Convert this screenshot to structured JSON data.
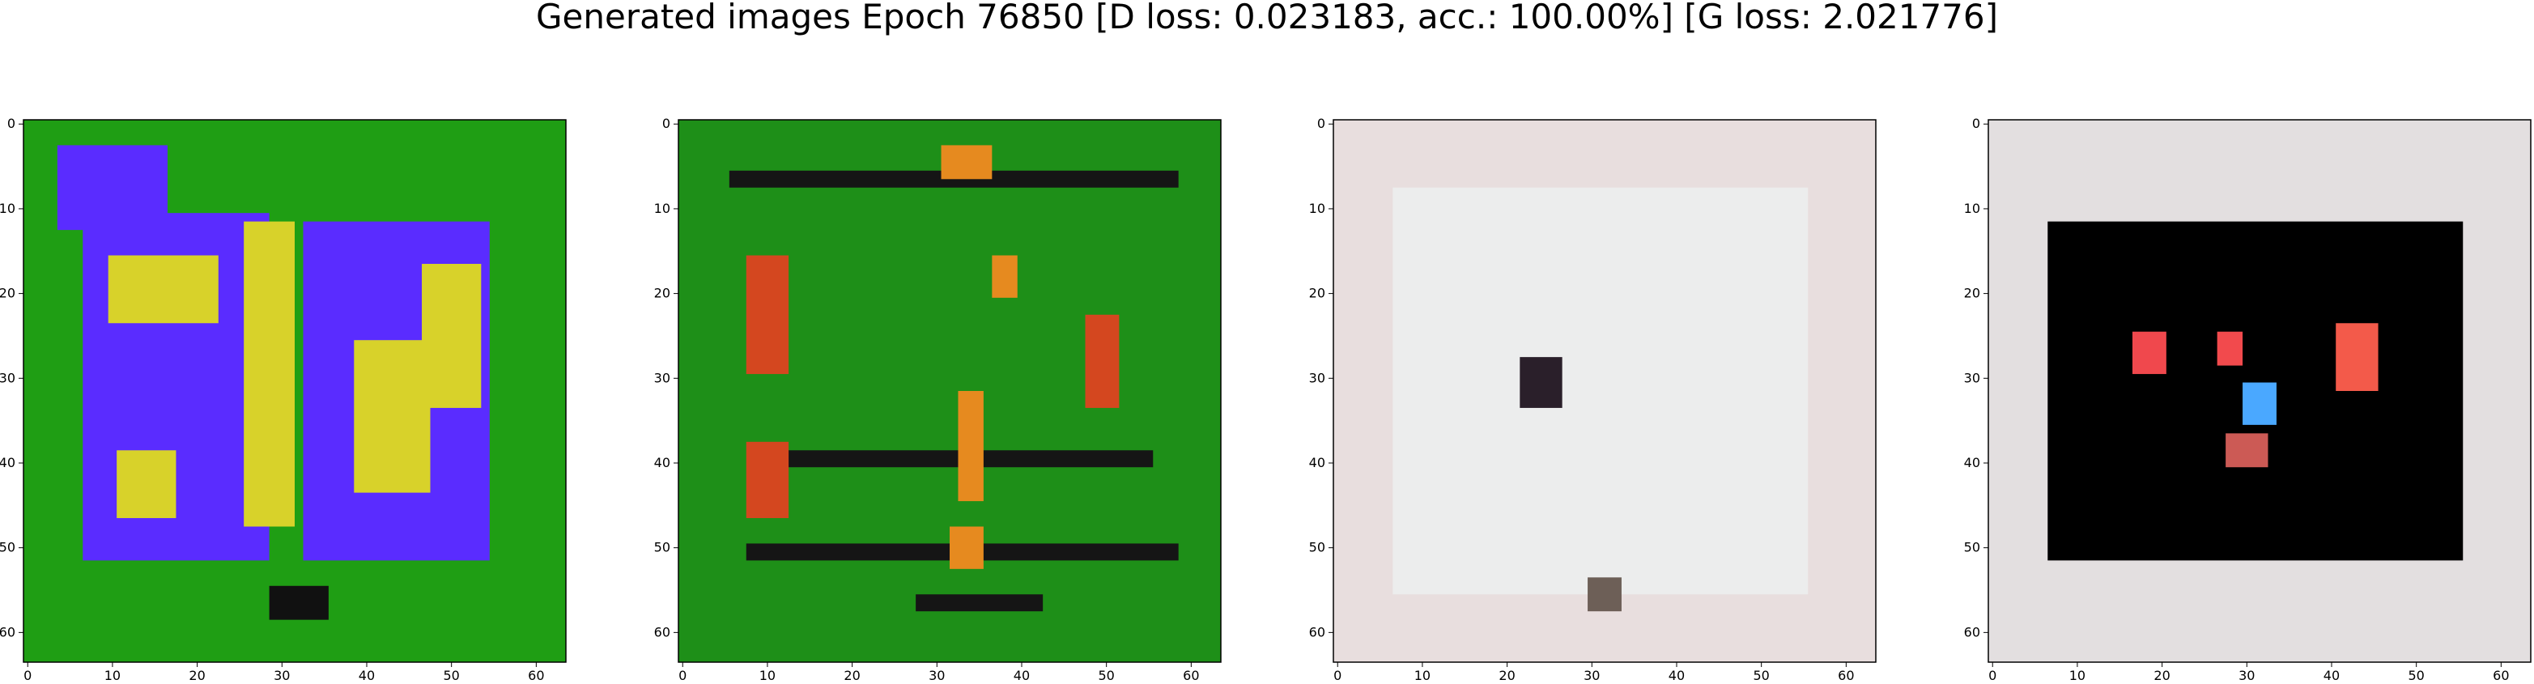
{
  "figure": {
    "title": "Generated images Epoch 76850 [D loss: 0.023183, acc.: 100.00%] [G loss: 2.021776]"
  },
  "chart_data": [
    {
      "type": "heatmap",
      "subplot": 1,
      "xlim": [
        0,
        63
      ],
      "ylim": [
        63,
        0
      ],
      "x_ticks": [
        0,
        10,
        20,
        30,
        40,
        50,
        60
      ],
      "y_ticks": [
        0,
        10,
        20,
        30,
        40,
        50,
        60
      ],
      "x_tick_labels": [
        "0",
        "10",
        "20",
        "30",
        "40",
        "50",
        "60"
      ],
      "y_tick_labels": [
        "0",
        "10",
        "20",
        "30",
        "40",
        "50",
        "60"
      ],
      "background_color": "#1f9e14",
      "regions": [
        {
          "color": "#5a2cff",
          "x": [
            7,
            28
          ],
          "y": [
            11,
            51
          ]
        },
        {
          "color": "#5a2cff",
          "x": [
            33,
            54
          ],
          "y": [
            12,
            51
          ]
        },
        {
          "color": "#5a2cff",
          "x": [
            4,
            16
          ],
          "y": [
            3,
            12
          ]
        },
        {
          "color": "#d8d22a",
          "x": [
            10,
            22
          ],
          "y": [
            16,
            23
          ]
        },
        {
          "color": "#d8d22a",
          "x": [
            11,
            17
          ],
          "y": [
            39,
            46
          ]
        },
        {
          "color": "#d8d22a",
          "x": [
            39,
            47
          ],
          "y": [
            26,
            43
          ]
        },
        {
          "color": "#d8d22a",
          "x": [
            47,
            53
          ],
          "y": [
            17,
            33
          ]
        },
        {
          "color": "#d8d22a",
          "x": [
            26,
            31
          ],
          "y": [
            12,
            47
          ]
        },
        {
          "color": "#111111",
          "x": [
            29,
            35
          ],
          "y": [
            55,
            58
          ]
        }
      ]
    },
    {
      "type": "heatmap",
      "subplot": 2,
      "xlim": [
        0,
        63
      ],
      "ylim": [
        63,
        0
      ],
      "x_ticks": [
        0,
        10,
        20,
        30,
        40,
        50,
        60
      ],
      "y_ticks": [
        0,
        10,
        20,
        30,
        40,
        50,
        60
      ],
      "x_tick_labels": [
        "0",
        "10",
        "20",
        "30",
        "40",
        "50",
        "60"
      ],
      "y_tick_labels": [
        "0",
        "10",
        "20",
        "30",
        "40",
        "50",
        "60"
      ],
      "background_color": "#1e8f18",
      "regions": [
        {
          "color": "#151515",
          "x": [
            6,
            58
          ],
          "y": [
            6,
            7
          ]
        },
        {
          "color": "#151515",
          "x": [
            10,
            55
          ],
          "y": [
            39,
            40
          ]
        },
        {
          "color": "#151515",
          "x": [
            8,
            58
          ],
          "y": [
            50,
            51
          ]
        },
        {
          "color": "#151515",
          "x": [
            28,
            42
          ],
          "y": [
            56,
            57
          ]
        },
        {
          "color": "#d4471f",
          "x": [
            8,
            12
          ],
          "y": [
            16,
            29
          ]
        },
        {
          "color": "#d4471f",
          "x": [
            8,
            12
          ],
          "y": [
            38,
            46
          ]
        },
        {
          "color": "#d4471f",
          "x": [
            48,
            51
          ],
          "y": [
            23,
            33
          ]
        },
        {
          "color": "#e68a1f",
          "x": [
            33,
            35
          ],
          "y": [
            32,
            44
          ]
        },
        {
          "color": "#e68a1f",
          "x": [
            32,
            35
          ],
          "y": [
            48,
            52
          ]
        },
        {
          "color": "#e68a1f",
          "x": [
            31,
            36
          ],
          "y": [
            3,
            6
          ]
        },
        {
          "color": "#e68a1f",
          "x": [
            37,
            39
          ],
          "y": [
            16,
            20
          ]
        }
      ]
    },
    {
      "type": "heatmap",
      "subplot": 3,
      "xlim": [
        0,
        63
      ],
      "ylim": [
        63,
        0
      ],
      "x_ticks": [
        0,
        10,
        20,
        30,
        40,
        50,
        60
      ],
      "y_ticks": [
        0,
        10,
        20,
        30,
        40,
        50,
        60
      ],
      "x_tick_labels": [
        "0",
        "10",
        "20",
        "30",
        "40",
        "50",
        "60"
      ],
      "y_tick_labels": [
        "0",
        "10",
        "20",
        "30",
        "40",
        "50",
        "60"
      ],
      "background_color": "#e8dede",
      "regions": [
        {
          "color": "#eceded",
          "x": [
            7,
            55
          ],
          "y": [
            8,
            55
          ]
        },
        {
          "color": "#2a1f2a",
          "x": [
            22,
            26
          ],
          "y": [
            28,
            33
          ]
        },
        {
          "color": "#6d5f57",
          "x": [
            30,
            33
          ],
          "y": [
            54,
            57
          ]
        }
      ]
    },
    {
      "type": "heatmap",
      "subplot": 4,
      "xlim": [
        0,
        63
      ],
      "ylim": [
        63,
        0
      ],
      "x_ticks": [
        0,
        10,
        20,
        30,
        40,
        50,
        60
      ],
      "y_ticks": [
        0,
        10,
        20,
        30,
        40,
        50,
        60
      ],
      "x_tick_labels": [
        "0",
        "10",
        "20",
        "30",
        "40",
        "50",
        "60"
      ],
      "y_tick_labels": [
        "0",
        "10",
        "20",
        "30",
        "40",
        "50",
        "60"
      ],
      "background_color": "#e3dfe0",
      "regions": [
        {
          "color": "#000000",
          "x": [
            7,
            55
          ],
          "y": [
            12,
            51
          ]
        },
        {
          "color": "#f0484d",
          "x": [
            17,
            20
          ],
          "y": [
            25,
            29
          ]
        },
        {
          "color": "#f24a4d",
          "x": [
            27,
            29
          ],
          "y": [
            25,
            28
          ]
        },
        {
          "color": "#f35a4a",
          "x": [
            41,
            45
          ],
          "y": [
            24,
            31
          ]
        },
        {
          "color": "#4aa8ff",
          "x": [
            30,
            33
          ],
          "y": [
            31,
            35
          ]
        },
        {
          "color": "#cc5a55",
          "x": [
            28,
            32
          ],
          "y": [
            37,
            40
          ]
        }
      ]
    }
  ]
}
